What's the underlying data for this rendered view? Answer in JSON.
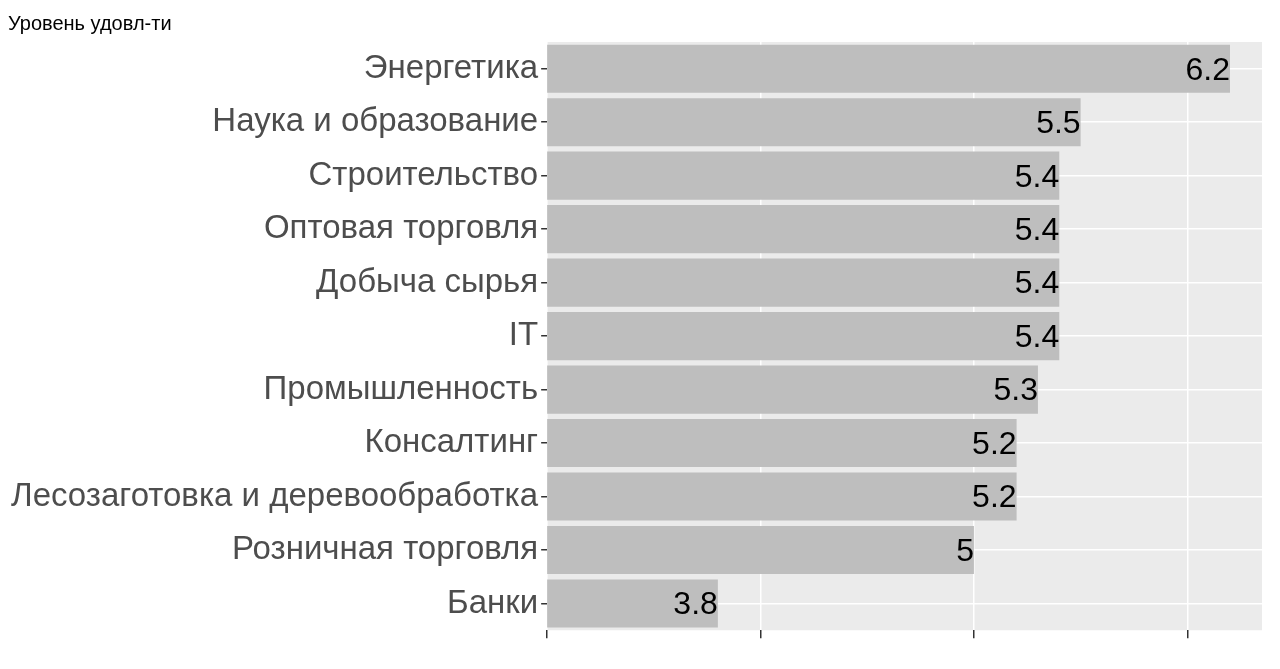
{
  "chart_data": {
    "type": "bar",
    "orientation": "horizontal",
    "title": "Уровень удовл-ти",
    "categories": [
      "Энергетика",
      "Наука и образование",
      "Строительство",
      "Оптовая торговля",
      "Добыча сырья",
      "IT",
      "Промышленность",
      "Консалтинг",
      "Лесозаготовка и деревообработка",
      "Розничная торговля",
      "Банки"
    ],
    "values": [
      6.2,
      5.5,
      5.4,
      5.4,
      5.4,
      5.4,
      5.3,
      5.2,
      5.2,
      5,
      3.8
    ],
    "color": "#bebebe",
    "xlim": [
      3,
      6.35
    ],
    "xticks": [
      {
        "value": 3,
        "label": null
      },
      {
        "value": 4,
        "label": null
      },
      {
        "value": 5,
        "label": null
      },
      {
        "value": 6,
        "label": null
      }
    ],
    "tick_labels": "y",
    "grid": true,
    "data_labels": true,
    "legend": false
  }
}
